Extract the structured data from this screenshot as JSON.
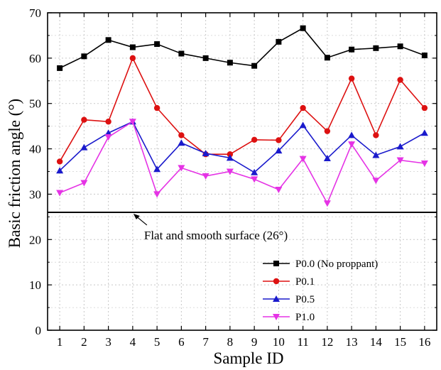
{
  "chart_data": {
    "type": "line",
    "title": "",
    "xlabel": "Sample ID",
    "ylabel": "Basic friction angle (°)",
    "categories": [
      "1",
      "2",
      "3",
      "4",
      "5",
      "6",
      "7",
      "8",
      "9",
      "10",
      "11",
      "12",
      "13",
      "14",
      "15",
      "16"
    ],
    "xlim": [
      0.5,
      16.5
    ],
    "ylim": [
      0,
      70
    ],
    "yticks": [
      "0",
      "10",
      "20",
      "30",
      "40",
      "50",
      "60",
      "70"
    ],
    "grid": true,
    "legend_position": "bottom-right",
    "series": [
      {
        "name": "P0.0 (No proppant)",
        "color": "#000000",
        "marker": "square",
        "values": [
          57.8,
          60.4,
          64.0,
          62.4,
          63.1,
          61.0,
          60.0,
          59.0,
          58.3,
          63.6,
          66.6,
          60.1,
          61.9,
          62.2,
          62.6,
          60.6
        ]
      },
      {
        "name": "P0.1",
        "color": "#dd1111",
        "marker": "circle",
        "values": [
          37.2,
          46.4,
          46.0,
          60.0,
          49.0,
          43.0,
          38.8,
          38.8,
          42.0,
          41.9,
          49.0,
          43.9,
          55.5,
          43.0,
          55.2,
          49.0
        ]
      },
      {
        "name": "P0.5",
        "color": "#1a1acc",
        "marker": "triangle-up",
        "values": [
          35.2,
          40.3,
          43.5,
          46.0,
          35.5,
          41.3,
          39.0,
          38.0,
          34.8,
          39.6,
          45.2,
          37.9,
          43.0,
          38.6,
          40.5,
          43.5
        ]
      },
      {
        "name": "P1.0",
        "color": "#e533e5",
        "marker": "triangle-down",
        "values": [
          30.3,
          32.5,
          42.6,
          46.0,
          30.0,
          35.8,
          34.0,
          35.0,
          33.3,
          31.0,
          37.8,
          28.0,
          41.0,
          33.0,
          37.5,
          36.8
        ]
      }
    ],
    "reference_line": {
      "value": 26,
      "label": "Flat and smooth surface (26°)"
    }
  }
}
